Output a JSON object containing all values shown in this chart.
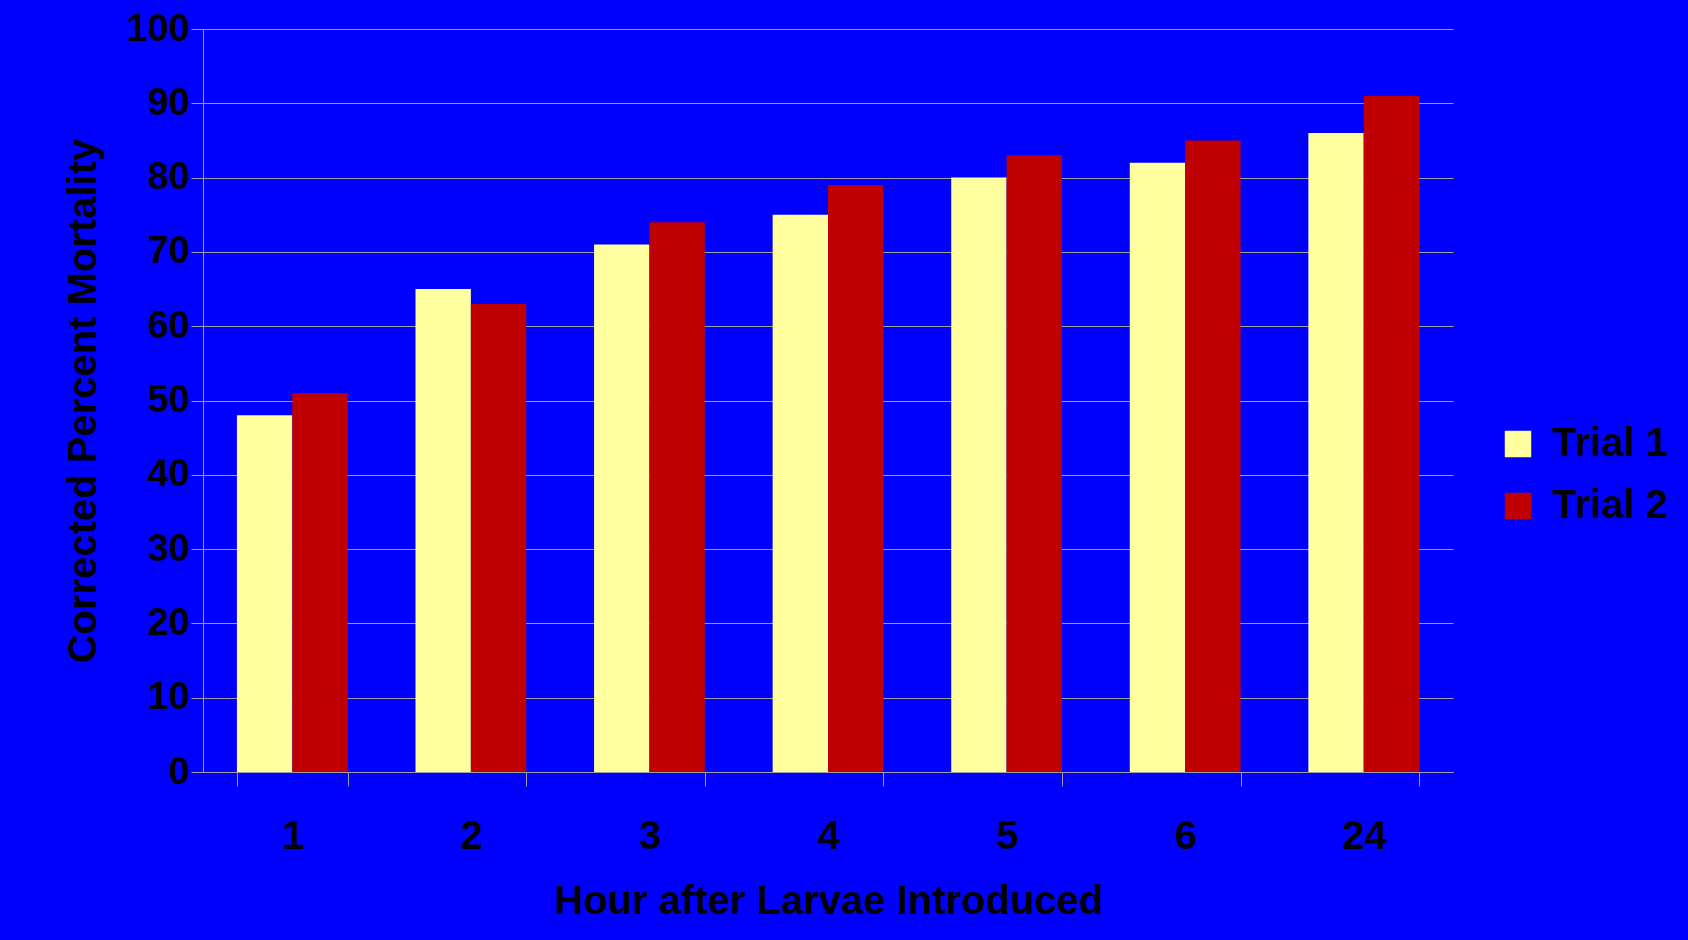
{
  "chart_data": {
    "type": "bar",
    "xlabel": "Hour after Larvae Introduced",
    "ylabel": "Corrected Percent Mortality",
    "categories": [
      "1",
      "2",
      "3",
      "4",
      "5",
      "6",
      "24"
    ],
    "series": [
      {
        "name": "Trial 1",
        "color": "#ffffa0",
        "values": [
          48,
          65,
          71,
          75,
          80,
          82,
          86
        ]
      },
      {
        "name": "Trial 2",
        "color": "#c00000",
        "values": [
          51,
          63,
          74,
          79,
          83,
          85,
          91
        ]
      }
    ],
    "ylim": [
      0,
      100
    ],
    "yticks": [
      0,
      10,
      20,
      30,
      40,
      50,
      60,
      70,
      80,
      90,
      100
    ],
    "grid": "y",
    "legend": "right"
  }
}
